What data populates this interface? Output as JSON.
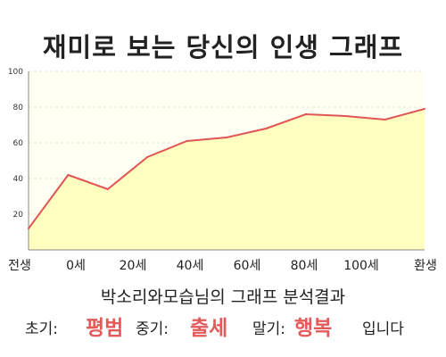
{
  "title": "재미로 보는 당신의 인생 그래프",
  "chart_data": {
    "type": "area",
    "x_labels": [
      "전생",
      "0세",
      "20세",
      "40세",
      "60세",
      "80세",
      "100세",
      "환생"
    ],
    "y_ticks": [
      20,
      40,
      60,
      80,
      100
    ],
    "ylim": [
      0,
      100
    ],
    "grid": true,
    "line_color": "#e05555",
    "fill_color": "#ffffc0",
    "plot_bg": "#fffff0",
    "points": [
      12,
      42,
      34,
      52,
      61,
      63,
      68,
      76,
      75,
      73,
      79
    ]
  },
  "result_line": "박소리와모습님의 그래프 분석결과",
  "summary": {
    "early_label": "초기:",
    "early_value": "평범",
    "middle_label": "중기:",
    "middle_value": "출세",
    "late_label": "말기:",
    "late_value": "행복",
    "ending": "입니다"
  }
}
